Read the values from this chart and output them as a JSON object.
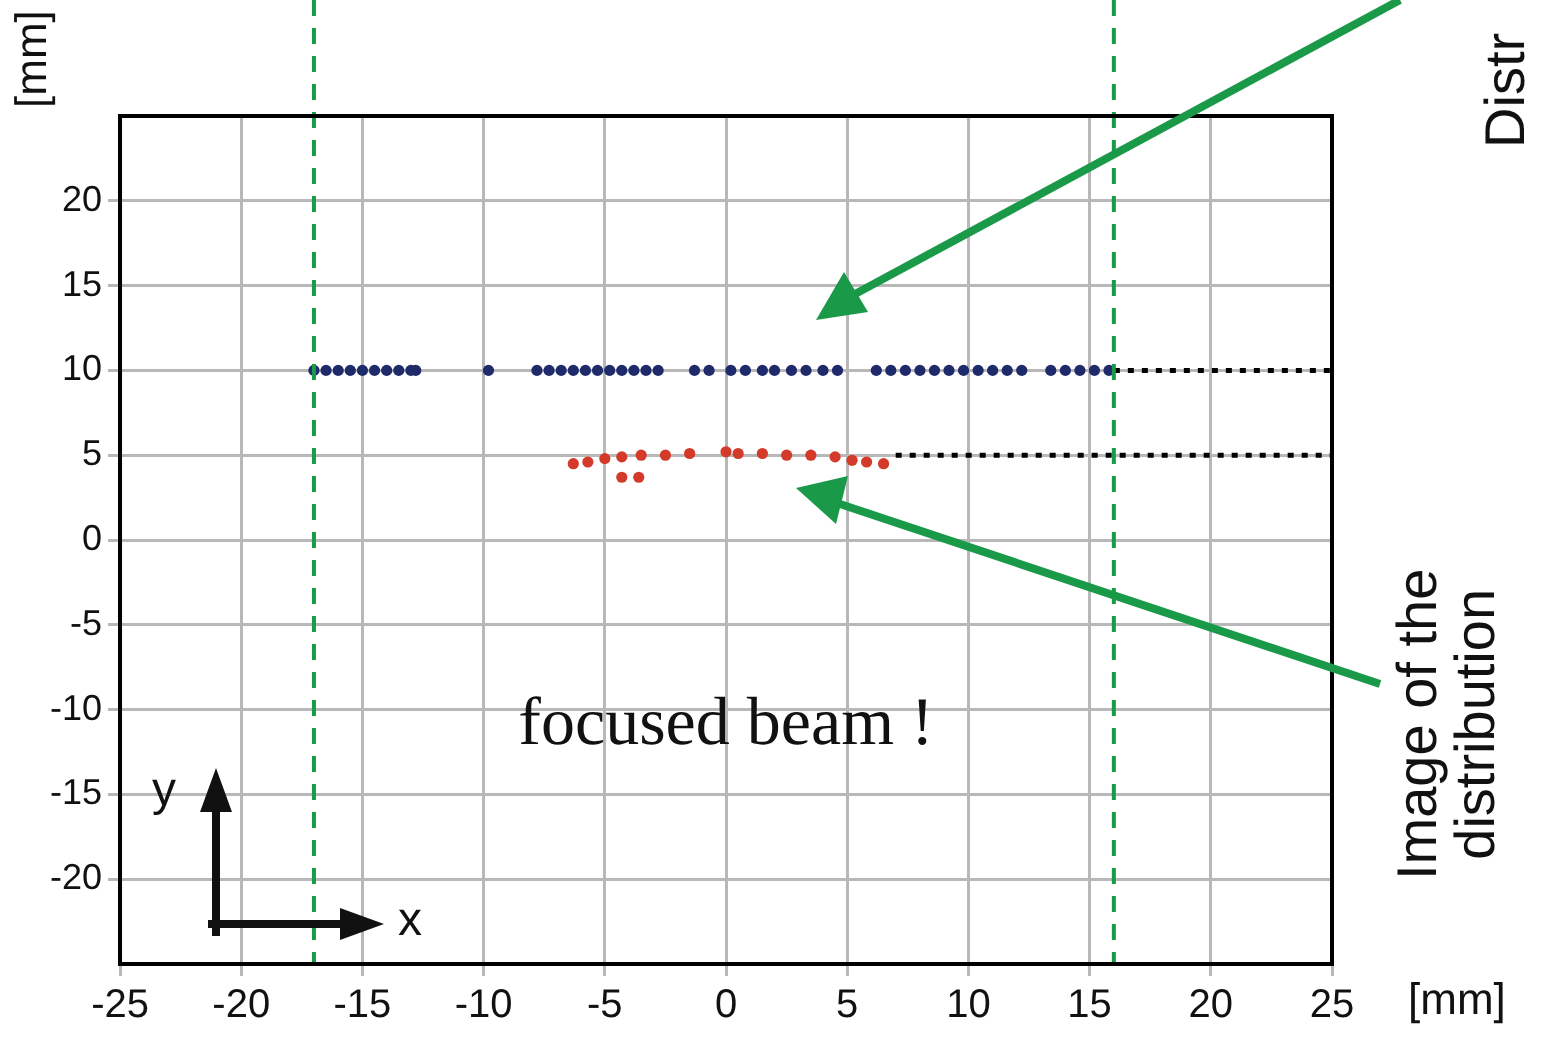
{
  "chart_data": {
    "type": "scatter",
    "ylabel": "[mm]",
    "xlabel": "[mm]",
    "xlim": [
      -25,
      25
    ],
    "xticks": [
      -25,
      -20,
      -15,
      -10,
      -5,
      0,
      5,
      10,
      15,
      20,
      25
    ],
    "ylim": [
      -25,
      25
    ],
    "yticks": [
      -20,
      -15,
      -10,
      -5,
      0,
      5,
      10,
      15,
      20
    ],
    "grid": true,
    "legend": false,
    "marker": "circle",
    "series": [
      {
        "color": "#1f2a6b",
        "x": [
          -17,
          -16.5,
          -16,
          -15.5,
          -15,
          -14.5,
          -14,
          -13.5,
          -13,
          -12.8,
          -9.8,
          -7.8,
          -7.3,
          -6.8,
          -6.3,
          -5.8,
          -5.3,
          -4.8,
          -4.3,
          -3.8,
          -3.3,
          -2.8,
          -1.3,
          -0.7,
          0.2,
          0.8,
          1.5,
          2,
          2.7,
          3.3,
          4,
          4.6,
          6.2,
          6.8,
          7.4,
          8,
          8.6,
          9.2,
          9.8,
          10.4,
          11,
          11.6,
          12.2,
          13.4,
          14,
          14.6,
          15.2,
          15.8
        ],
        "values": [
          10,
          10,
          10,
          10,
          10,
          10,
          10,
          10,
          10,
          10,
          10,
          10,
          10,
          10,
          10,
          10,
          10,
          10,
          10,
          10,
          10,
          10,
          10,
          10,
          10,
          10,
          10,
          10,
          10,
          10,
          10,
          10,
          10,
          10,
          10,
          10,
          10,
          10,
          10,
          10,
          10,
          10,
          10,
          10,
          10,
          10,
          10,
          10
        ]
      },
      {
        "color": "#d43a2a",
        "x": [
          -6.3,
          -5.7,
          -5,
          -4.3,
          -3.5,
          -2.5,
          -1.5,
          0,
          0.5,
          1.5,
          2.5,
          3.5,
          4.5,
          5.2,
          5.8,
          6.5,
          -4.3,
          -3.6
        ],
        "values": [
          4.5,
          4.6,
          4.8,
          4.9,
          5,
          5,
          5.1,
          5.2,
          5.1,
          5.1,
          5,
          5,
          4.9,
          4.7,
          4.6,
          4.5,
          3.7,
          3.7
        ]
      },
      {
        "type": "line",
        "color": "#000000",
        "line_style": "dotted",
        "marker": "none",
        "x": [
          16,
          25
        ],
        "values": [
          10,
          10
        ]
      },
      {
        "type": "line",
        "color": "#000000",
        "line_style": "dotted",
        "marker": "none",
        "x": [
          7,
          25
        ],
        "values": [
          5,
          5
        ]
      }
    ],
    "ref_lines": [
      {
        "axis": "x",
        "value": -17,
        "color": "#1a9a48",
        "line_style": "dashed"
      },
      {
        "axis": "x",
        "value": 16,
        "color": "#1a9a48",
        "line_style": "dashed"
      }
    ],
    "annotations": [
      "focused beam !",
      "y",
      "x",
      "Image of the\ndistribution",
      "Distr"
    ]
  }
}
